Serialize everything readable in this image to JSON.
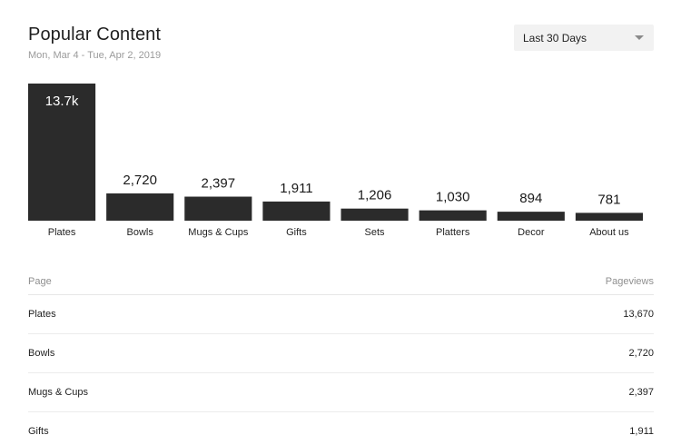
{
  "header": {
    "title": "Popular Content",
    "date_range_text": "Mon, Mar 4 - Tue, Apr 2, 2019",
    "range_select": {
      "selected": "Last 30 Days"
    }
  },
  "colors": {
    "bar": "#2b2b2b",
    "text": "#1f1f1f",
    "muted": "#9a9a9a"
  },
  "icons": {
    "dropdown": "chevron-down-icon"
  },
  "chart_data": {
    "type": "bar",
    "title": "",
    "xlabel": "",
    "ylabel": "",
    "categories": [
      "Plates",
      "Bowls",
      "Mugs & Cups",
      "Gifts",
      "Sets",
      "Platters",
      "Decor",
      "About us"
    ],
    "values": [
      13670,
      2720,
      2397,
      1911,
      1206,
      1030,
      894,
      781
    ],
    "value_labels": [
      "13.7k",
      "2,720",
      "2,397",
      "1,911",
      "1,206",
      "1,030",
      "894",
      "781"
    ],
    "ylim": [
      0,
      13670
    ],
    "grid": false,
    "legend": "none"
  },
  "table": {
    "columns": [
      "Page",
      "Pageviews"
    ],
    "rows": [
      {
        "page": "Plates",
        "pageviews": "13,670"
      },
      {
        "page": "Bowls",
        "pageviews": "2,720"
      },
      {
        "page": "Mugs & Cups",
        "pageviews": "2,397"
      },
      {
        "page": "Gifts",
        "pageviews": "1,911"
      }
    ]
  }
}
